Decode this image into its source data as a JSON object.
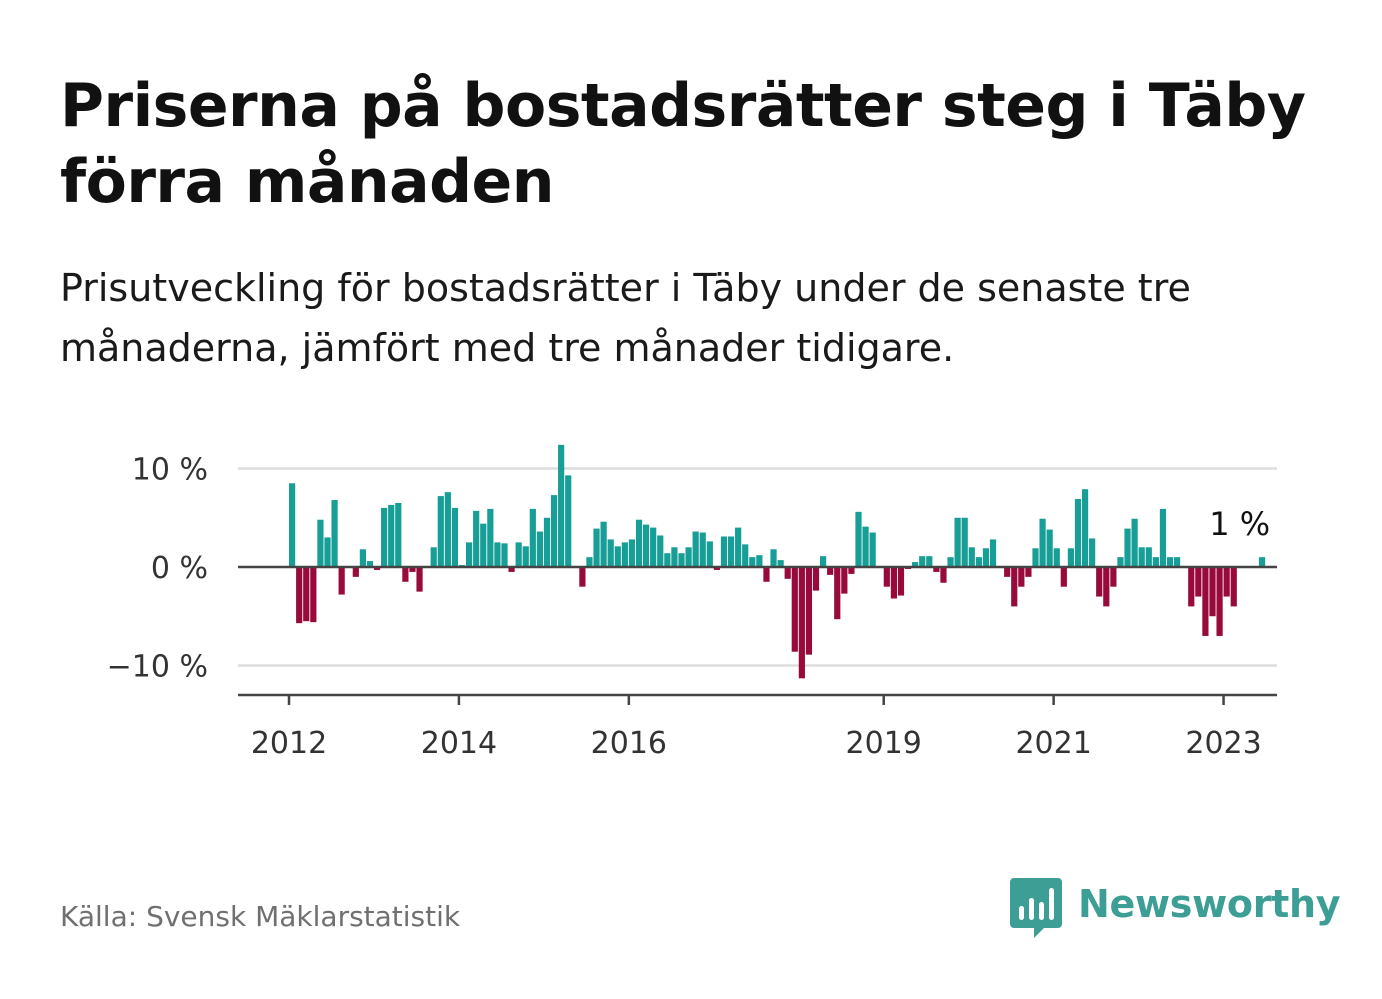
{
  "header": {
    "title": "Priserna på bostadsrätter steg i Täby förra månaden",
    "subtitle": "Prisutveckling för bostadsrätter i Täby under de senaste tre månaderna, jämfört med tre månader tidigare."
  },
  "footer": {
    "source": "Källa: Svensk Mäklarstatistik",
    "brand": "Newsworthy",
    "brand_icon": "bar-chart-speech-bubble-icon"
  },
  "colors": {
    "positive": "#179e96",
    "negative": "#990a3c",
    "brand": "#3d9e96",
    "grid": "#dddddd",
    "axis": "#444444"
  },
  "chart_data": {
    "type": "bar",
    "x_unit": "month",
    "start": "2012-01",
    "ylim": [
      -13,
      13
    ],
    "yticks": [
      {
        "value": 10,
        "label": "10 %"
      },
      {
        "value": 0,
        "label": "0 %"
      },
      {
        "value": -10,
        "label": "−10 %"
      }
    ],
    "xticks": [
      {
        "date": "2012-01",
        "label": "2012"
      },
      {
        "date": "2014-01",
        "label": "2014"
      },
      {
        "date": "2016-01",
        "label": "2016"
      },
      {
        "date": "2019-01",
        "label": "2019"
      },
      {
        "date": "2021-01",
        "label": "2021"
      },
      {
        "date": "2023-01",
        "label": "2023"
      }
    ],
    "annotation": {
      "date": "2023-02",
      "value": 1,
      "text": "1 %"
    },
    "values": [
      8.5,
      -5.7,
      -5.5,
      -5.6,
      4.8,
      3.0,
      6.8,
      -2.8,
      0,
      -1.0,
      1.8,
      0.6,
      -0.3,
      6.0,
      6.3,
      6.5,
      -1.5,
      -0.5,
      -2.5,
      0,
      2.0,
      7.2,
      7.6,
      6.0,
      0.2,
      2.5,
      5.7,
      4.4,
      5.9,
      2.5,
      2.4,
      -0.5,
      2.5,
      2.1,
      5.9,
      3.6,
      5.0,
      7.3,
      12.4,
      9.3,
      0,
      -2.0,
      1.0,
      3.9,
      4.6,
      2.8,
      2.1,
      2.5,
      2.8,
      4.8,
      4.3,
      4.0,
      3.2,
      1.4,
      2.0,
      1.4,
      2.0,
      3.6,
      3.5,
      2.6,
      -0.3,
      3.1,
      3.1,
      4.0,
      2.3,
      1.0,
      1.2,
      -1.5,
      1.8,
      0.7,
      -1.2,
      -8.6,
      -11.3,
      -8.9,
      -2.4,
      1.1,
      -0.8,
      -5.3,
      -2.7,
      -0.7,
      5.6,
      4.1,
      3.5,
      0,
      -2.0,
      -3.2,
      -2.9,
      -0.2,
      0.5,
      1.1,
      1.1,
      -0.5,
      -1.6,
      1.0,
      5.0,
      5.0,
      2.0,
      1.0,
      1.9,
      2.8,
      0,
      -1.0,
      -4.0,
      -2.0,
      -1.0,
      1.9,
      4.9,
      3.8,
      1.9,
      -2.0,
      1.9,
      6.9,
      7.9,
      2.9,
      -3.0,
      -4.0,
      -2.0,
      1.0,
      3.9,
      4.9,
      2.0,
      2.0,
      1.0,
      5.9,
      1.0,
      1.0,
      0,
      -4.0,
      -3.0,
      -7.0,
      -5.0,
      -7.0,
      -3.0,
      -4.0,
      0,
      0,
      0,
      1.0
    ]
  }
}
